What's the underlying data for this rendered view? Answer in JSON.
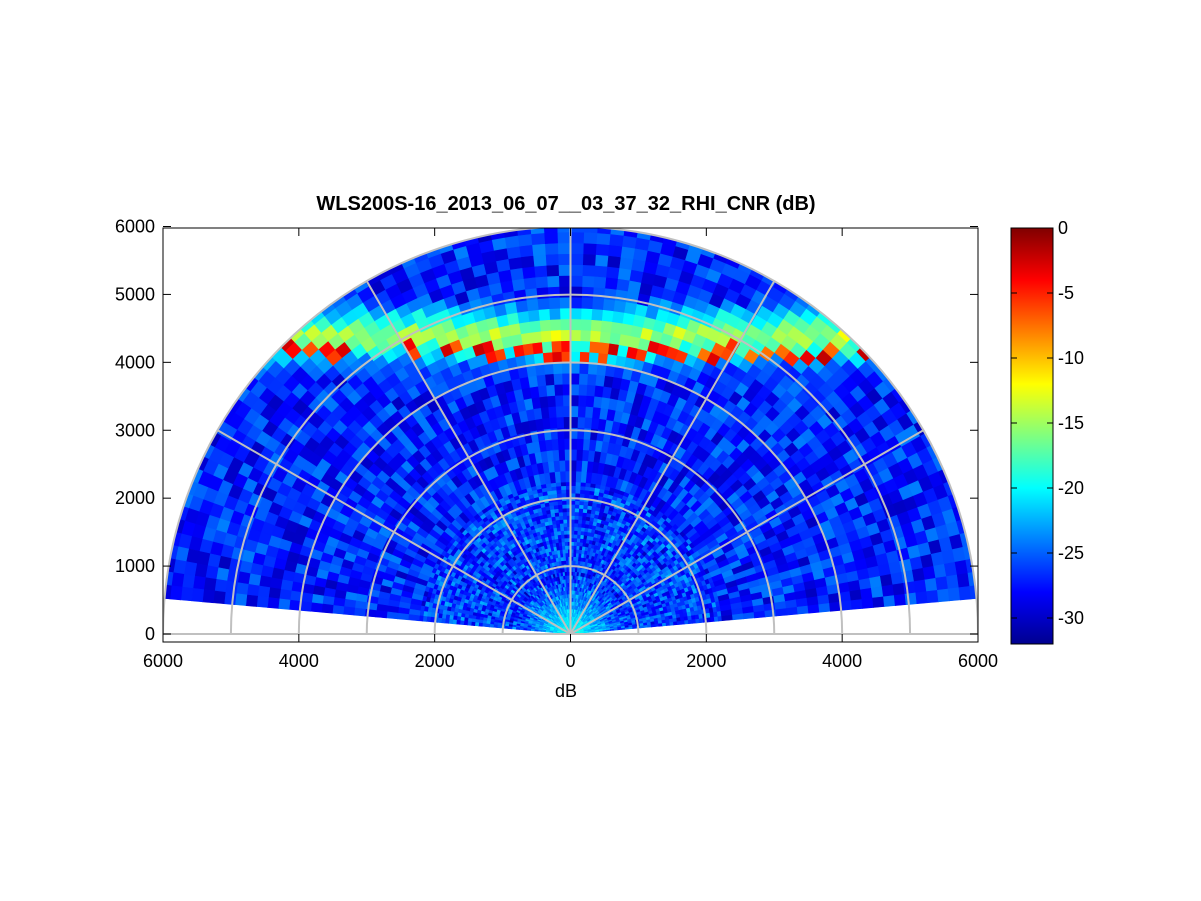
{
  "chart_data": {
    "type": "heatmap",
    "subtype": "polar-rhi",
    "title": "WLS200S-16_2013_06_07__03_37_32_RHI_CNR (dB)",
    "xlabel": "dB",
    "ylabel": "",
    "xlim": [
      -6000,
      6000
    ],
    "ylim": [
      0,
      6000
    ],
    "x_tick_labels": [
      "6000",
      "4000",
      "2000",
      "0",
      "2000",
      "4000",
      "6000"
    ],
    "y_tick_labels": [
      "0",
      "1000",
      "2000",
      "3000",
      "4000",
      "5000",
      "6000"
    ],
    "range_rings": [
      1000,
      2000,
      3000,
      4000,
      5000,
      6000
    ],
    "azimuth_spokes_deg": [
      0,
      30,
      60,
      90,
      120,
      150,
      180
    ],
    "elevation_span_deg": [
      5,
      175
    ],
    "max_range": 6000,
    "grid": true,
    "colormap": "jet",
    "colorbar": {
      "range": [
        -32,
        0
      ],
      "tick_labels": [
        "0",
        "-5",
        "-10",
        "-15",
        "-20",
        "-25",
        "-30"
      ],
      "tick_values": [
        0,
        -5,
        -10,
        -15,
        -20,
        -25,
        -30
      ]
    },
    "field_features": {
      "near_range_enhanced_layer": {
        "range_max": 900,
        "value": -19
      },
      "background": {
        "value": -27
      },
      "elevated_layer": {
        "height_min": 4050,
        "height_max": 4750,
        "peak_value": -5,
        "core_value": -14
      }
    }
  }
}
